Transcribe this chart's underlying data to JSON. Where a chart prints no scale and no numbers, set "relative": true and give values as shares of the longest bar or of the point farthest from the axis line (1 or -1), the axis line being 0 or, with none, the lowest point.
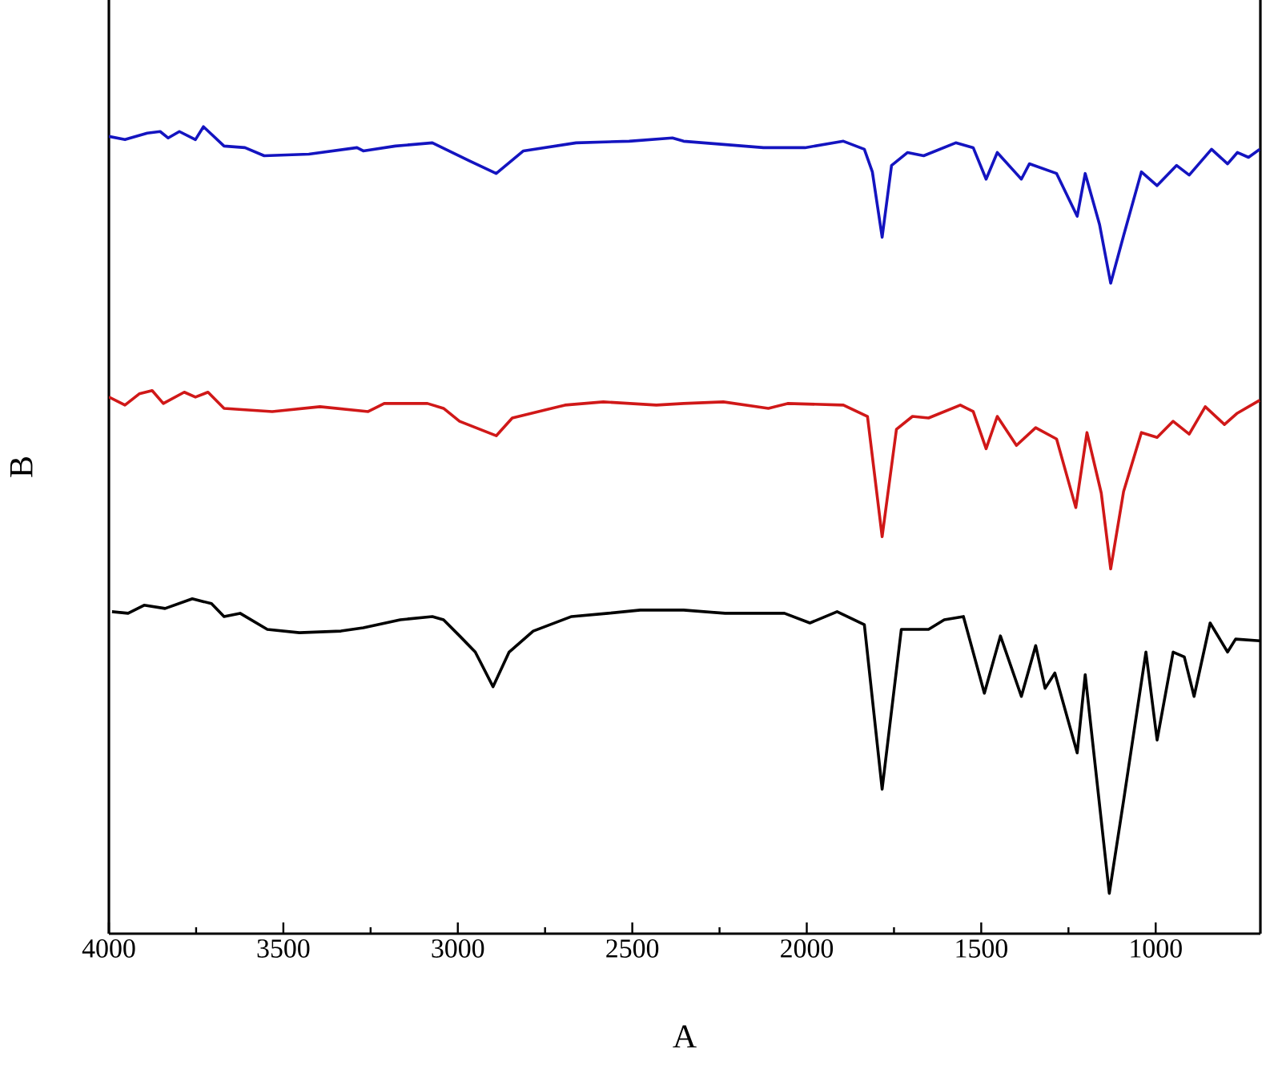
{
  "chart_data": {
    "type": "line",
    "relative": true,
    "xlabel": "A",
    "ylabel": "B",
    "xlim": [
      4000,
      700
    ],
    "xticks": [
      4000,
      3500,
      3000,
      2500,
      2000,
      1500,
      1000
    ],
    "tick_labels": "x",
    "grid": false,
    "marker": "none",
    "line_style": "solid",
    "series": [
      {
        "color": "#1414c0",
        "x": [
          4000,
          3954,
          3890,
          3853,
          3830,
          3798,
          3752,
          3729,
          3670,
          3610,
          3555,
          3427,
          3289,
          3271,
          3179,
          3073,
          2968,
          2890,
          2812,
          2661,
          2509,
          2385,
          2353,
          2124,
          2005,
          1895,
          1835,
          1812,
          1784,
          1757,
          1711,
          1665,
          1573,
          1523,
          1486,
          1454,
          1385,
          1362,
          1284,
          1225,
          1202,
          1161,
          1129,
          1092,
          1041,
          996,
          940,
          904,
          840,
          794,
          766,
          734,
          702
        ],
        "values": [
          0.988,
          0.984,
          0.992,
          0.994,
          0.986,
          0.994,
          0.984,
          1,
          0.976,
          0.974,
          0.964,
          0.966,
          0.974,
          0.97,
          0.976,
          0.98,
          0.958,
          0.942,
          0.97,
          0.98,
          0.982,
          0.986,
          0.982,
          0.974,
          0.974,
          0.982,
          0.972,
          0.944,
          0.863,
          0.952,
          0.968,
          0.964,
          0.98,
          0.974,
          0.935,
          0.968,
          0.935,
          0.954,
          0.942,
          0.889,
          0.942,
          0.879,
          0.806,
          0.865,
          0.944,
          0.927,
          0.952,
          0.94,
          0.972,
          0.954,
          0.968,
          0.962,
          0.972
        ]
      },
      {
        "color": "#d01818",
        "x": [
          4000,
          3954,
          3913,
          3876,
          3844,
          3784,
          3752,
          3716,
          3670,
          3532,
          3395,
          3257,
          3211,
          3087,
          3041,
          2995,
          2890,
          2844,
          2693,
          2583,
          2431,
          2353,
          2239,
          2110,
          2055,
          1895,
          1826,
          1784,
          1743,
          1697,
          1651,
          1560,
          1523,
          1486,
          1454,
          1399,
          1344,
          1284,
          1229,
          1197,
          1156,
          1129,
          1092,
          1041,
          996,
          950,
          904,
          858,
          803,
          766,
          702
        ],
        "values": [
          0.665,
          0.655,
          0.669,
          0.673,
          0.657,
          0.671,
          0.665,
          0.671,
          0.651,
          0.647,
          0.653,
          0.647,
          0.657,
          0.657,
          0.651,
          0.635,
          0.617,
          0.639,
          0.655,
          0.659,
          0.655,
          0.657,
          0.659,
          0.651,
          0.657,
          0.655,
          0.641,
          0.492,
          0.625,
          0.641,
          0.639,
          0.655,
          0.647,
          0.601,
          0.641,
          0.605,
          0.627,
          0.613,
          0.528,
          0.621,
          0.546,
          0.452,
          0.548,
          0.621,
          0.615,
          0.635,
          0.619,
          0.653,
          0.631,
          0.645,
          0.661
        ]
      },
      {
        "color": "#000000",
        "x": [
          3991,
          3945,
          3899,
          3839,
          3761,
          3706,
          3670,
          3624,
          3546,
          3454,
          3335,
          3271,
          3165,
          3073,
          3041,
          2995,
          2950,
          2899,
          2853,
          2784,
          2674,
          2569,
          2477,
          2353,
          2234,
          2064,
          1991,
          1913,
          1835,
          1784,
          1729,
          1651,
          1606,
          1551,
          1491,
          1445,
          1385,
          1344,
          1317,
          1289,
          1225,
          1202,
          1133,
          1092,
          1028,
          996,
          950,
          918,
          890,
          844,
          794,
          771,
          702
        ],
        "values": [
          0.399,
          0.397,
          0.407,
          0.403,
          0.415,
          0.409,
          0.393,
          0.397,
          0.377,
          0.373,
          0.375,
          0.379,
          0.389,
          0.393,
          0.389,
          0.369,
          0.349,
          0.306,
          0.349,
          0.375,
          0.393,
          0.397,
          0.401,
          0.401,
          0.397,
          0.397,
          0.385,
          0.399,
          0.383,
          0.179,
          0.377,
          0.377,
          0.389,
          0.393,
          0.298,
          0.369,
          0.294,
          0.357,
          0.304,
          0.323,
          0.224,
          0.321,
          0.05,
          0.165,
          0.349,
          0.24,
          0.349,
          0.343,
          0.294,
          0.385,
          0.349,
          0.365,
          0.363
        ]
      }
    ]
  }
}
